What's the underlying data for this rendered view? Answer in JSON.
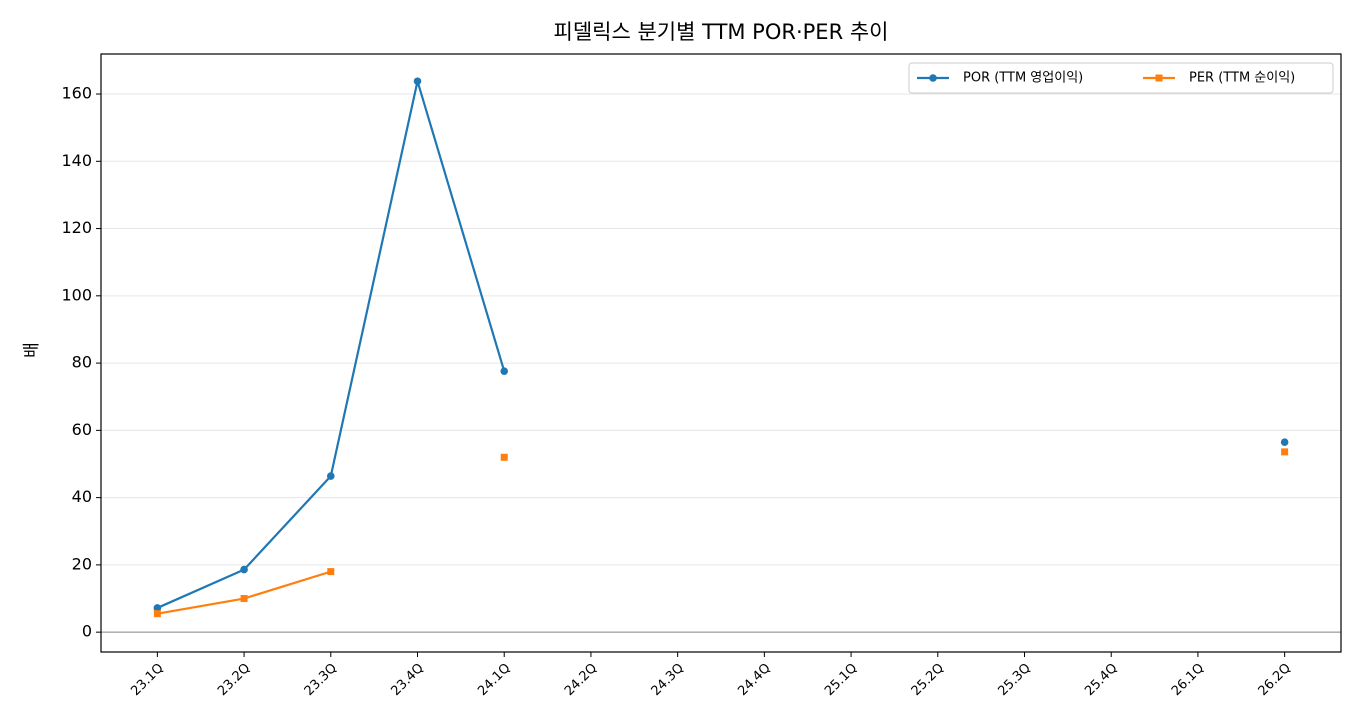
{
  "chart_data": {
    "type": "line",
    "title": "피델릭스 분기별 TTM POR·PER 추이",
    "y_label": "배",
    "categories": [
      "23.1Q",
      "23.2Q",
      "23.3Q",
      "23.4Q",
      "24.1Q",
      "24.2Q",
      "24.3Q",
      "24.4Q",
      "25.1Q",
      "25.2Q",
      "25.3Q",
      "25.4Q",
      "26.1Q",
      "26.2Q"
    ],
    "series": [
      {
        "name": "POR (TTM 영업이익)",
        "color": "#1f77b4",
        "marker": "circle",
        "values": [
          7.2,
          18.6,
          46.4,
          163.8,
          77.6,
          null,
          null,
          null,
          null,
          null,
          null,
          null,
          null,
          56.5
        ]
      },
      {
        "name": "PER (TTM 순이익)",
        "color": "#ff7f0e",
        "marker": "square",
        "values": [
          5.5,
          10.0,
          18.0,
          null,
          52.0,
          null,
          null,
          null,
          null,
          null,
          null,
          null,
          null,
          53.6
        ]
      }
    ],
    "ylim": [
      -5.9,
      171.9
    ],
    "yticks": [
      0,
      20,
      40,
      60,
      80,
      100,
      120,
      140,
      160
    ],
    "grid": true,
    "hline": 0,
    "legend": "upper right"
  }
}
